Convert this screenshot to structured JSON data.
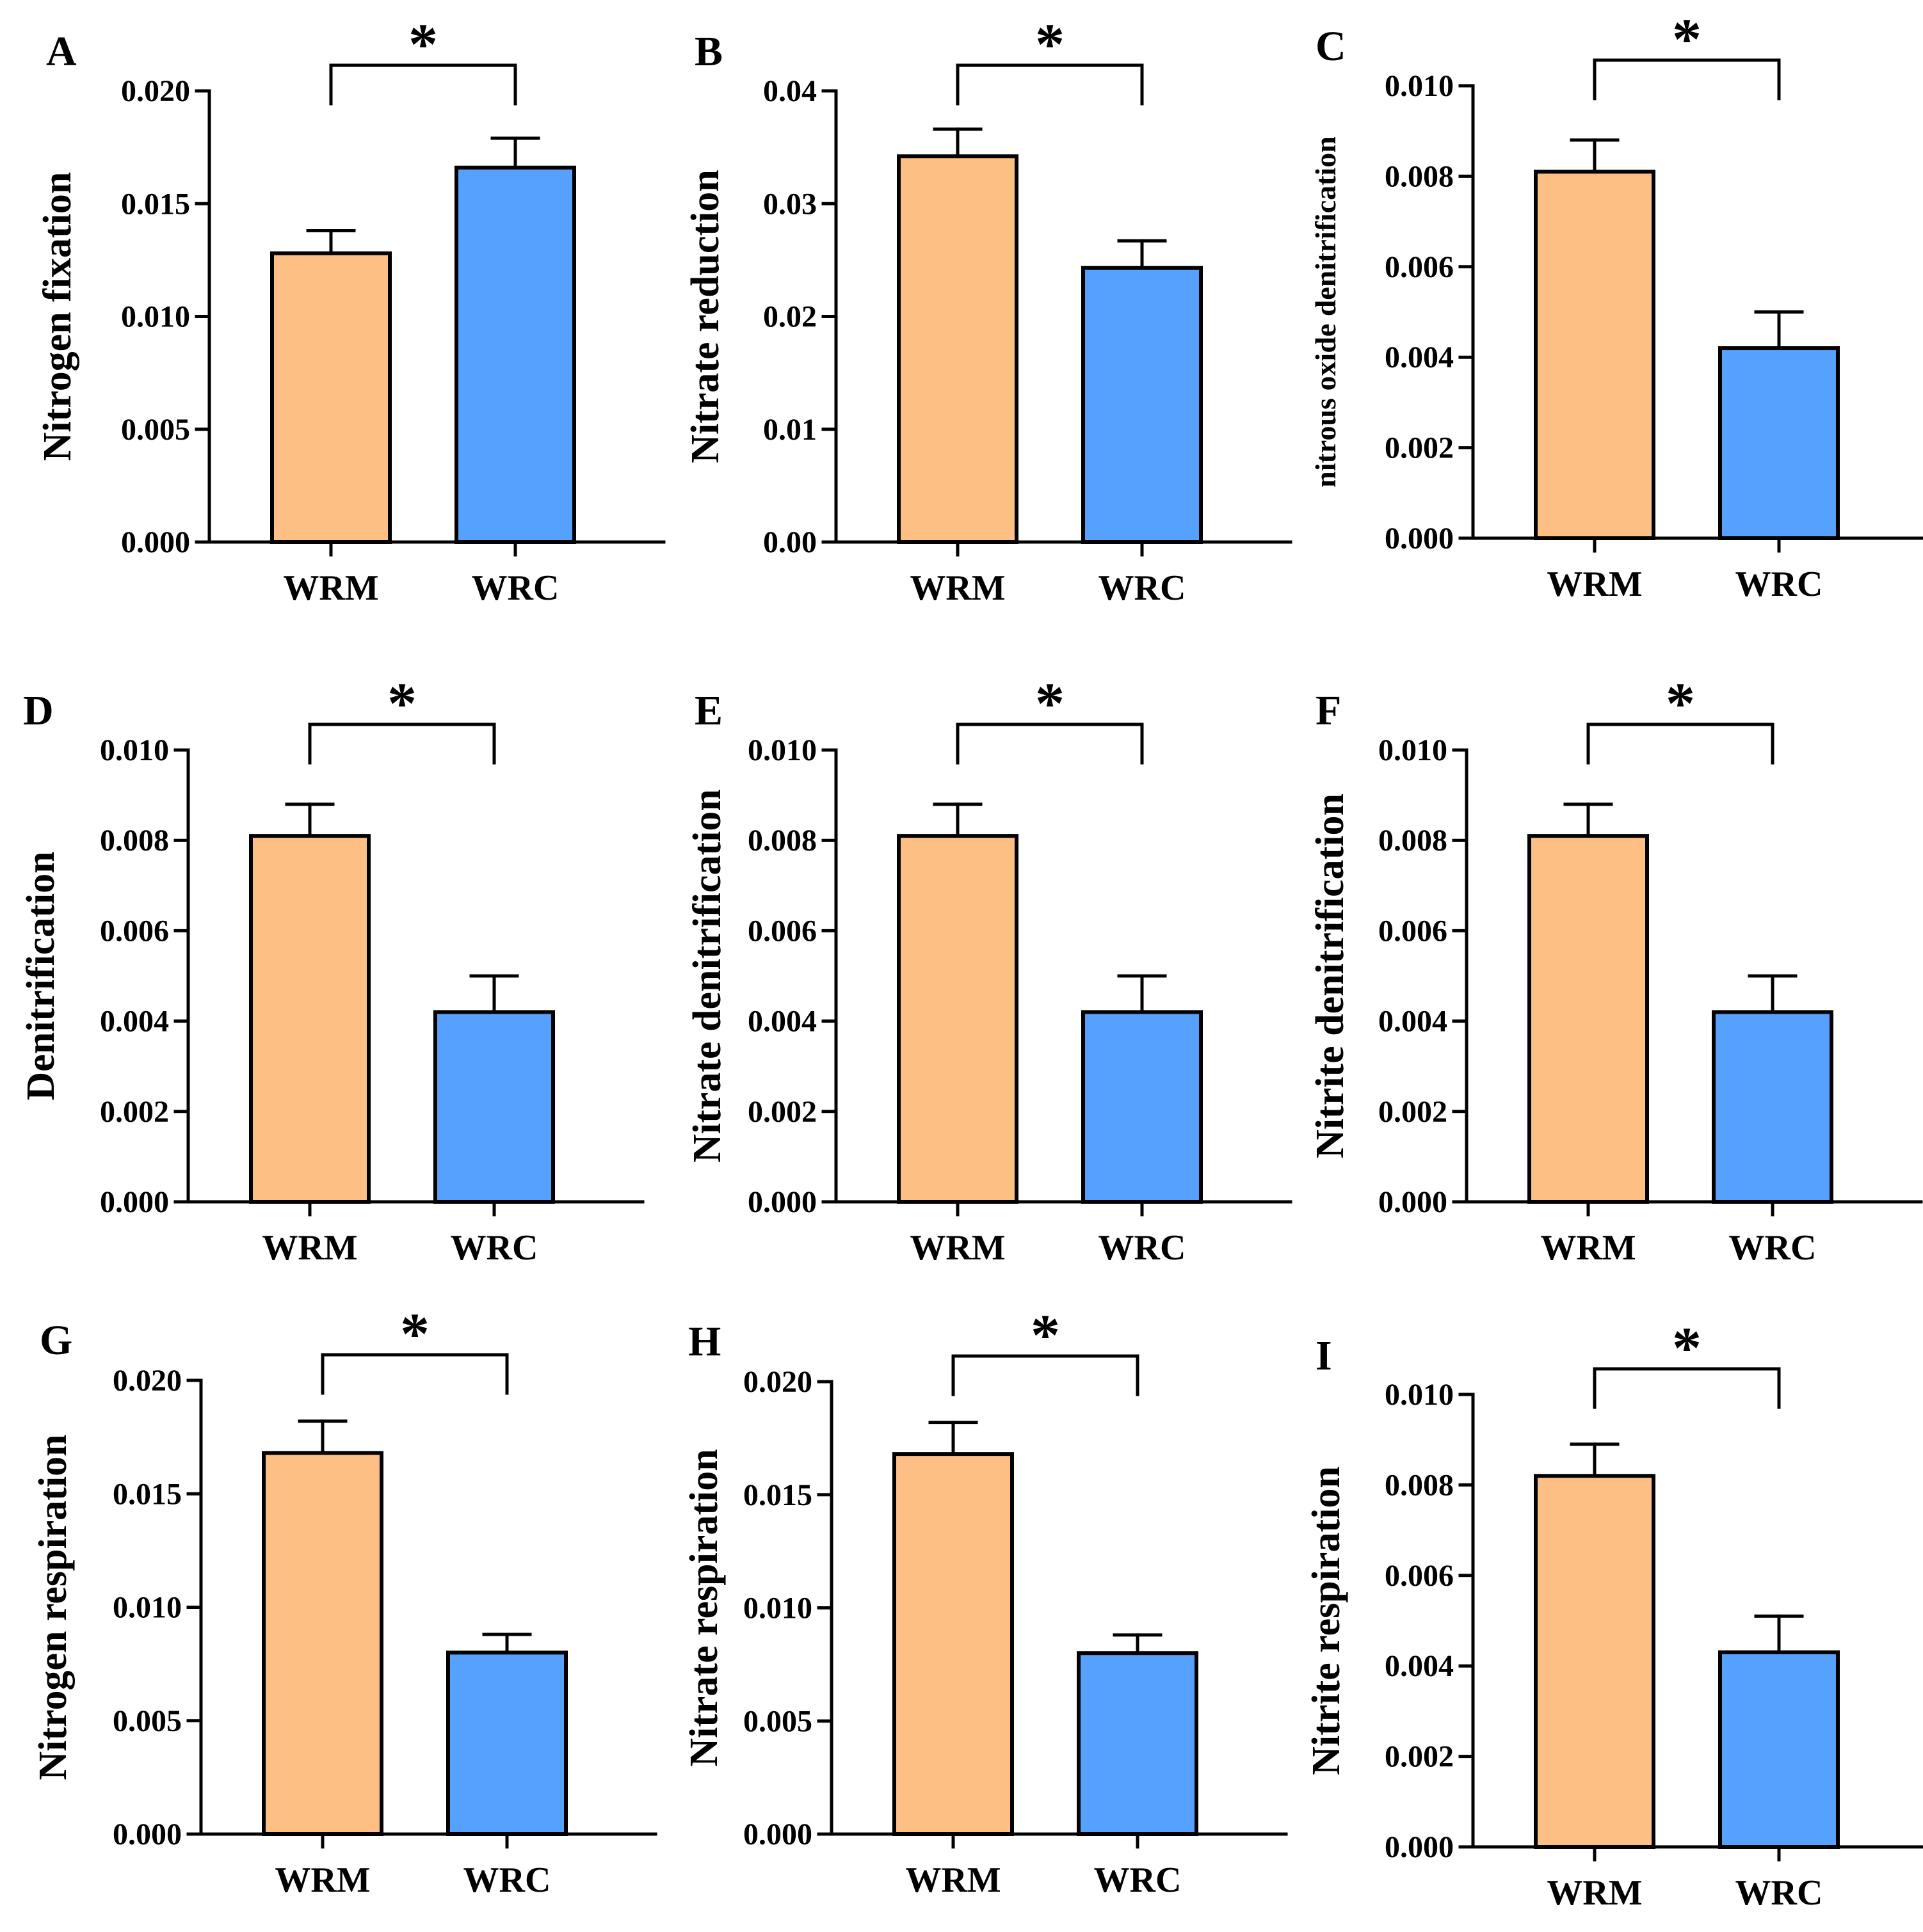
{
  "colors": {
    "WRM": "#fdbf84",
    "WRC": "#55a1fd",
    "axis": "#000000"
  },
  "chart_data": [
    {
      "panel": "A",
      "type": "bar",
      "title": "",
      "xlabel": "",
      "ylabel": "Nitrogen fixation",
      "categories": [
        "WRM",
        "WRC"
      ],
      "values": [
        0.0128,
        0.0166
      ],
      "errors": [
        0.001,
        0.0013
      ],
      "ylim": [
        0,
        0.02
      ],
      "yticks": [
        0,
        0.005,
        0.01,
        0.015,
        0.02
      ],
      "ytick_labels": [
        "0.000",
        "0.005",
        "0.010",
        "0.015",
        "0.020"
      ],
      "significance": "*"
    },
    {
      "panel": "B",
      "type": "bar",
      "title": "",
      "xlabel": "",
      "ylabel": "Nitrate reduction",
      "categories": [
        "WRM",
        "WRC"
      ],
      "values": [
        0.0342,
        0.0243
      ],
      "errors": [
        0.0024,
        0.0024
      ],
      "ylim": [
        0,
        0.04
      ],
      "yticks": [
        0,
        0.01,
        0.02,
        0.03,
        0.04
      ],
      "ytick_labels": [
        "0.00",
        "0.01",
        "0.02",
        "0.03",
        "0.04"
      ],
      "significance": "*"
    },
    {
      "panel": "C",
      "type": "bar",
      "title": "",
      "xlabel": "",
      "ylabel": "nitrous oxide denitrification",
      "categories": [
        "WRM",
        "WRC"
      ],
      "values": [
        0.0081,
        0.0042
      ],
      "errors": [
        0.0007,
        0.0008
      ],
      "ylim": [
        0,
        0.01
      ],
      "yticks": [
        0,
        0.002,
        0.004,
        0.006,
        0.008,
        0.01
      ],
      "ytick_labels": [
        "0.000",
        "0.002",
        "0.004",
        "0.006",
        "0.008",
        "0.010"
      ],
      "significance": "*"
    },
    {
      "panel": "D",
      "type": "bar",
      "title": "",
      "xlabel": "",
      "ylabel": "Denitrification",
      "categories": [
        "WRM",
        "WRC"
      ],
      "values": [
        0.0081,
        0.0042
      ],
      "errors": [
        0.0007,
        0.0008
      ],
      "ylim": [
        0,
        0.01
      ],
      "yticks": [
        0,
        0.002,
        0.004,
        0.006,
        0.008,
        0.01
      ],
      "ytick_labels": [
        "0.000",
        "0.002",
        "0.004",
        "0.006",
        "0.008",
        "0.010"
      ],
      "significance": "*"
    },
    {
      "panel": "E",
      "type": "bar",
      "title": "",
      "xlabel": "",
      "ylabel": "Nitrate denitrification",
      "categories": [
        "WRM",
        "WRC"
      ],
      "values": [
        0.0081,
        0.0042
      ],
      "errors": [
        0.0007,
        0.0008
      ],
      "ylim": [
        0,
        0.01
      ],
      "yticks": [
        0,
        0.002,
        0.004,
        0.006,
        0.008,
        0.01
      ],
      "ytick_labels": [
        "0.000",
        "0.002",
        "0.004",
        "0.006",
        "0.008",
        "0.010"
      ],
      "significance": "*"
    },
    {
      "panel": "F",
      "type": "bar",
      "title": "",
      "xlabel": "",
      "ylabel": "Nitrite denitrification",
      "categories": [
        "WRM",
        "WRC"
      ],
      "values": [
        0.0081,
        0.0042
      ],
      "errors": [
        0.0007,
        0.0008
      ],
      "ylim": [
        0,
        0.01
      ],
      "yticks": [
        0,
        0.002,
        0.004,
        0.006,
        0.008,
        0.01
      ],
      "ytick_labels": [
        "0.000",
        "0.002",
        "0.004",
        "0.006",
        "0.008",
        "0.010"
      ],
      "significance": "*"
    },
    {
      "panel": "G",
      "type": "bar",
      "title": "",
      "xlabel": "",
      "ylabel": "Nitrogen respiration",
      "categories": [
        "WRM",
        "WRC"
      ],
      "values": [
        0.0168,
        0.008
      ],
      "errors": [
        0.0014,
        0.0008
      ],
      "ylim": [
        0,
        0.02
      ],
      "yticks": [
        0,
        0.005,
        0.01,
        0.015,
        0.02
      ],
      "ytick_labels": [
        "0.000",
        "0.005",
        "0.010",
        "0.015",
        "0.020"
      ],
      "significance": "*"
    },
    {
      "panel": "H",
      "type": "bar",
      "title": "",
      "xlabel": "",
      "ylabel": "Nitrate respiration",
      "categories": [
        "WRM",
        "WRC"
      ],
      "values": [
        0.0168,
        0.008
      ],
      "errors": [
        0.0014,
        0.0008
      ],
      "ylim": [
        0,
        0.02
      ],
      "yticks": [
        0,
        0.005,
        0.01,
        0.015,
        0.02
      ],
      "ytick_labels": [
        "0.000",
        "0.005",
        "0.010",
        "0.015",
        "0.020"
      ],
      "significance": "*"
    },
    {
      "panel": "I",
      "type": "bar",
      "title": "",
      "xlabel": "",
      "ylabel": "Nitrite respiration",
      "categories": [
        "WRM",
        "WRC"
      ],
      "values": [
        0.0082,
        0.0043
      ],
      "errors": [
        0.0007,
        0.0008
      ],
      "ylim": [
        0,
        0.01
      ],
      "yticks": [
        0,
        0.002,
        0.004,
        0.006,
        0.008,
        0.01
      ],
      "ytick_labels": [
        "0.000",
        "0.002",
        "0.004",
        "0.006",
        "0.008",
        "0.010"
      ],
      "significance": "*"
    }
  ]
}
